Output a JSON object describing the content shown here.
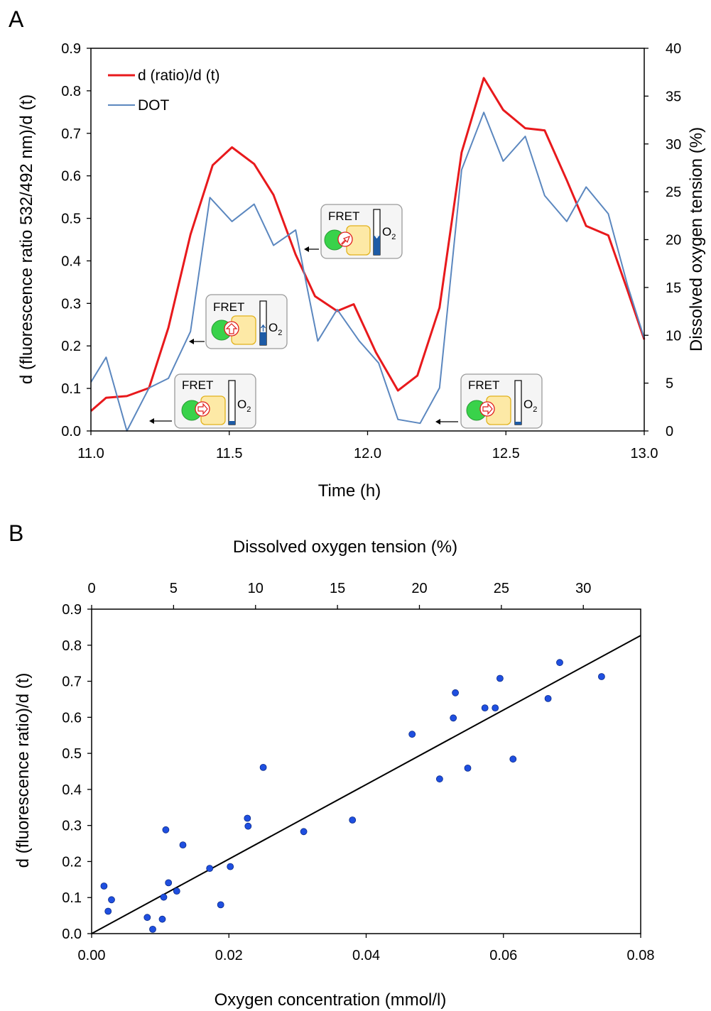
{
  "panels": {
    "A": "A",
    "B": "B"
  },
  "chart_data": [
    {
      "type": "line",
      "panel": "A",
      "xlabel": "Time (h)",
      "ylabel": "d (fluorescence ratio 532/492 nm)/d (t)",
      "y2label": "Dissolved  oxygen tension (%)",
      "xlim": [
        11.0,
        13.0
      ],
      "ylim": [
        0,
        0.9
      ],
      "y2lim": [
        0,
        40
      ],
      "xticks": [
        "11.0",
        "11.5",
        "12.0",
        "12.5",
        "13.0"
      ],
      "yticks": [
        "0.0",
        "0.1",
        "0.2",
        "0.3",
        "0.4",
        "0.5",
        "0.6",
        "0.7",
        "0.8",
        "0.9"
      ],
      "y2ticks": [
        "0",
        "5",
        "10",
        "15",
        "20",
        "25",
        "30",
        "35",
        "40"
      ],
      "legend_position": "top-left",
      "colors": {
        "ratio": "#e8191c",
        "dot": "#5b87bf"
      },
      "series": [
        {
          "name": "d (ratio)/d (t)",
          "axis": "left",
          "x": [
            11.0,
            11.055,
            11.13,
            11.21,
            11.28,
            11.36,
            11.44,
            11.51,
            11.59,
            11.66,
            11.74,
            11.81,
            11.89,
            11.95,
            12.03,
            12.11,
            12.18,
            12.26,
            12.34,
            12.42,
            12.49,
            12.57,
            12.64,
            12.72,
            12.79,
            12.87,
            12.94,
            13.0
          ],
          "values": [
            0.047,
            0.078,
            0.082,
            0.101,
            0.243,
            0.462,
            0.625,
            0.667,
            0.628,
            0.555,
            0.415,
            0.317,
            0.282,
            0.298,
            0.185,
            0.095,
            0.13,
            0.29,
            0.655,
            0.83,
            0.755,
            0.712,
            0.707,
            0.59,
            0.482,
            0.46,
            0.33,
            0.215
          ]
        },
        {
          "name": "DOT",
          "axis": "right",
          "x": [
            11.0,
            11.055,
            11.13,
            11.21,
            11.28,
            11.36,
            11.43,
            11.51,
            11.59,
            11.66,
            11.74,
            11.82,
            11.89,
            11.97,
            12.04,
            12.11,
            12.19,
            12.26,
            12.34,
            12.42,
            12.49,
            12.57,
            12.64,
            12.72,
            12.79,
            12.87,
            12.94,
            13.0
          ],
          "values": [
            5.1,
            7.7,
            0.0,
            4.5,
            5.5,
            10.4,
            24.4,
            21.9,
            23.7,
            19.4,
            21.0,
            9.4,
            12.7,
            9.4,
            7.1,
            1.2,
            0.8,
            4.5,
            27.3,
            33.3,
            28.2,
            30.8,
            24.6,
            21.9,
            25.5,
            22.7,
            15.2,
            9.7
          ]
        }
      ],
      "insets": [
        {
          "fret_label": "FRET",
          "o2_label": "O",
          "o2_sub": "2"
        },
        {
          "fret_label": "FRET",
          "o2_label": "O",
          "o2_sub": "2"
        },
        {
          "fret_label": "FRET",
          "o2_label": "O",
          "o2_sub": "2"
        },
        {
          "fret_label": "FRET",
          "o2_label": "O",
          "o2_sub": "2"
        }
      ]
    },
    {
      "type": "scatter",
      "panel": "B",
      "xlabel": "Oxygen concentration (mmol/l)",
      "x2label": "Dissolved oxygen tension (%)",
      "ylabel": "d (fluorescence ratio)/d (t)",
      "xlim": [
        0,
        0.08
      ],
      "ylim": [
        0,
        0.9
      ],
      "x2lim": [
        0,
        33.5
      ],
      "xticks": [
        "0.00",
        "0.02",
        "0.04",
        "0.06",
        "0.08"
      ],
      "x2ticks": [
        "0",
        "5",
        "10",
        "15",
        "20",
        "25",
        "30"
      ],
      "yticks": [
        "0.0",
        "0.1",
        "0.2",
        "0.3",
        "0.4",
        "0.5",
        "0.6",
        "0.7",
        "0.8",
        "0.9"
      ],
      "colors": {
        "points": "#1f4fe0",
        "fit": "#000000"
      },
      "fit_line": {
        "x": [
          0,
          0.08
        ],
        "y": [
          0,
          0.827
        ]
      },
      "points": {
        "x": [
          0.0018,
          0.0024,
          0.0029,
          0.0081,
          0.0089,
          0.0103,
          0.0105,
          0.0108,
          0.0112,
          0.0124,
          0.0133,
          0.0172,
          0.0188,
          0.0202,
          0.0227,
          0.0228,
          0.025,
          0.0309,
          0.038,
          0.0467,
          0.0507,
          0.0527,
          0.053,
          0.0548,
          0.0573,
          0.0588,
          0.0595,
          0.0614,
          0.0665,
          0.0682,
          0.0743
        ],
        "y": [
          0.132,
          0.062,
          0.094,
          0.045,
          0.012,
          0.04,
          0.101,
          0.288,
          0.141,
          0.118,
          0.246,
          0.181,
          0.08,
          0.186,
          0.32,
          0.298,
          0.461,
          0.283,
          0.315,
          0.553,
          0.429,
          0.598,
          0.668,
          0.459,
          0.626,
          0.626,
          0.708,
          0.484,
          0.652,
          0.752,
          0.713
        ]
      }
    }
  ]
}
